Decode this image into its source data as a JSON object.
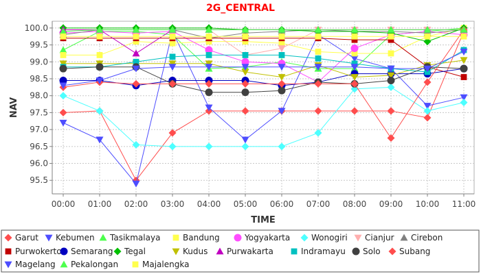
{
  "chart_data": {
    "type": "line",
    "title": "2G_CENTRAL",
    "xlabel": "TIME",
    "ylabel": "NAV",
    "categories": [
      "00:00",
      "01:00",
      "02:00",
      "03:00",
      "04:00",
      "05:00",
      "06:00",
      "07:00",
      "08:00",
      "09:00",
      "10:00",
      "11:00"
    ],
    "ylim": [
      95.1,
      100.2
    ],
    "yticks": [
      95.5,
      96.0,
      96.5,
      97.0,
      97.5,
      98.0,
      98.5,
      99.0,
      99.5,
      100.0
    ],
    "ytick_labels": [
      "95.5",
      "96.0",
      "96.5",
      "97.0",
      "97.5",
      "98.0",
      "98.5",
      "99.0",
      "99.5",
      "100.0"
    ],
    "grid": true,
    "legend_position": "bottom",
    "series": [
      {
        "name": "Garut",
        "color": "#ff4d4d",
        "marker": "diamond",
        "values": [
          97.5,
          97.55,
          95.5,
          96.9,
          97.55,
          97.55,
          97.55,
          97.55,
          97.55,
          97.55,
          97.35,
          99.9
        ]
      },
      {
        "name": "Kebumen",
        "color": "#4d4dff",
        "marker": "triangle-down",
        "values": [
          97.2,
          96.7,
          95.4,
          99.9,
          97.65,
          96.7,
          97.55,
          99.8,
          99.1,
          98.8,
          97.7,
          97.95
        ]
      },
      {
        "name": "Tasikmalaya",
        "color": "#4dff4d",
        "marker": "triangle-up",
        "values": [
          99.35,
          99.9,
          99.9,
          99.8,
          98.8,
          98.85,
          99.0,
          98.8,
          98.8,
          99.8,
          99.9,
          100.0
        ]
      },
      {
        "name": "Bandung",
        "color": "#ffff4d",
        "marker": "square",
        "values": [
          99.2,
          99.2,
          99.6,
          99.55,
          99.6,
          99.6,
          99.55,
          99.3,
          99.25,
          99.25,
          99.75,
          100.0
        ]
      },
      {
        "name": "Yogyakarta",
        "color": "#ff4dff",
        "marker": "circle",
        "values": [
          99.85,
          99.9,
          99.85,
          99.9,
          99.35,
          99.0,
          98.95,
          98.4,
          99.4,
          99.8,
          99.9,
          99.8
        ]
      },
      {
        "name": "Wonogiri",
        "color": "#4dffff",
        "marker": "diamond",
        "values": [
          98.0,
          97.55,
          96.55,
          96.5,
          96.5,
          96.5,
          96.5,
          96.9,
          98.2,
          98.25,
          97.55,
          97.8
        ]
      },
      {
        "name": "Cianjur",
        "color": "#ffafaf",
        "marker": "triangle-down",
        "values": [
          99.95,
          99.95,
          99.95,
          99.95,
          99.95,
          99.2,
          99.4,
          99.95,
          99.95,
          99.95,
          99.95,
          99.95
        ]
      },
      {
        "name": "Cirebon",
        "color": "#808080",
        "marker": "triangle-up",
        "values": [
          99.8,
          99.95,
          99.95,
          99.95,
          99.7,
          99.85,
          99.9,
          99.95,
          99.9,
          99.9,
          99.85,
          99.95
        ]
      },
      {
        "name": "Purwokerto",
        "color": "#c00000",
        "marker": "square",
        "values": [
          99.7,
          99.7,
          99.7,
          99.7,
          99.7,
          99.7,
          99.7,
          99.7,
          99.65,
          99.65,
          98.85,
          98.55
        ]
      },
      {
        "name": "Semarang",
        "color": "#0000c0",
        "marker": "circle",
        "values": [
          98.45,
          98.45,
          98.3,
          98.45,
          98.45,
          98.45,
          98.3,
          98.4,
          98.65,
          98.65,
          98.65,
          98.8
        ]
      },
      {
        "name": "Tegal",
        "color": "#00c000",
        "marker": "diamond",
        "values": [
          100.0,
          100.0,
          100.0,
          100.0,
          100.0,
          99.95,
          99.95,
          99.9,
          99.9,
          99.85,
          99.6,
          100.0
        ]
      },
      {
        "name": "Kudus",
        "color": "#c0c000",
        "marker": "triangle-down",
        "values": [
          98.95,
          98.95,
          98.95,
          98.95,
          98.95,
          98.7,
          98.55,
          98.9,
          98.55,
          98.6,
          98.9,
          99.05
        ]
      },
      {
        "name": "Purwakarta",
        "color": "#c000c0",
        "marker": "triangle-up",
        "values": [
          99.95,
          99.95,
          99.25,
          99.95,
          99.95,
          99.95,
          99.95,
          99.95,
          99.95,
          99.95,
          99.95,
          99.95
        ]
      },
      {
        "name": "Indramayu",
        "color": "#00c0c0",
        "marker": "square",
        "values": [
          98.85,
          98.85,
          99.0,
          99.15,
          99.2,
          99.2,
          99.2,
          99.1,
          98.95,
          98.8,
          98.7,
          99.35
        ]
      },
      {
        "name": "Solo",
        "color": "#404040",
        "marker": "circle",
        "values": [
          98.8,
          98.85,
          98.85,
          98.35,
          98.1,
          98.1,
          98.15,
          98.4,
          98.35,
          98.45,
          98.85,
          98.8
        ]
      },
      {
        "name": "Subang",
        "color": "#ff4d4d",
        "marker": "diamond",
        "values": [
          98.25,
          98.4,
          98.35,
          98.35,
          98.35,
          98.35,
          98.35,
          98.35,
          98.35,
          96.75,
          98.4,
          99.95
        ]
      },
      {
        "name": "Magelang",
        "color": "#4d4dff",
        "marker": "triangle-down",
        "values": [
          98.3,
          98.45,
          98.8,
          98.85,
          98.85,
          98.85,
          98.85,
          98.85,
          98.85,
          98.8,
          98.8,
          99.3
        ]
      },
      {
        "name": "Pekalongan",
        "color": "#4dff4d",
        "marker": "triangle-up",
        "values": [
          99.9,
          99.95,
          99.95,
          99.95,
          99.95,
          99.95,
          99.95,
          99.95,
          99.95,
          99.95,
          99.95,
          99.95
        ]
      },
      {
        "name": "Majalengka",
        "color": "#ffff4d",
        "marker": "square",
        "values": [
          99.75,
          99.75,
          99.75,
          99.75,
          99.75,
          99.75,
          99.75,
          99.75,
          99.75,
          99.75,
          99.75,
          99.75
        ]
      }
    ]
  }
}
